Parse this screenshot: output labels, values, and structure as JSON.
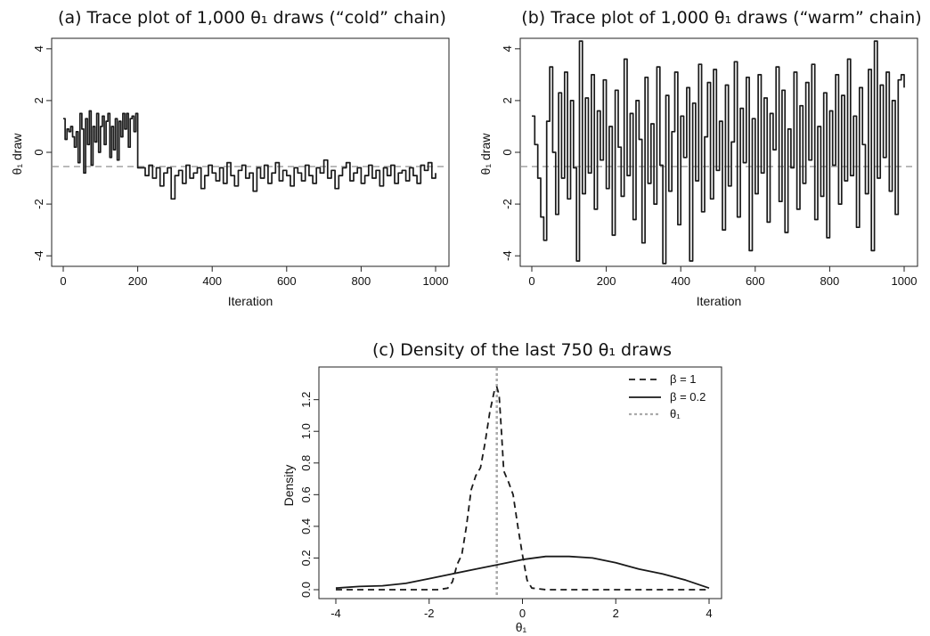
{
  "chart_data": [
    {
      "type": "line",
      "panel": "a",
      "title": "(a) Trace plot of 1,000 θ₁ draws (“cold” chain)",
      "xlabel": "Iteration",
      "ylabel": "θ₁ draw",
      "xlim": [
        0,
        1000
      ],
      "ylim": [
        -4.2,
        4.2
      ],
      "xticks": [
        "0",
        "200",
        "400",
        "600",
        "800",
        "1000"
      ],
      "yticks": [
        "-4",
        "-2",
        "0",
        "2",
        "4"
      ],
      "reference_line": {
        "y": -0.55,
        "color": "#aaaaaa",
        "style": "dashed"
      },
      "series": [
        {
          "line_color": "#1a1a1a",
          "x": [
            0,
            5,
            10,
            15,
            20,
            25,
            30,
            35,
            40,
            45,
            50,
            55,
            60,
            65,
            70,
            75,
            80,
            85,
            90,
            95,
            100,
            105,
            110,
            115,
            120,
            125,
            130,
            135,
            140,
            145,
            150,
            155,
            160,
            165,
            170,
            175,
            180,
            185,
            190,
            195,
            200,
            210,
            220,
            230,
            240,
            250,
            260,
            270,
            280,
            290,
            300,
            310,
            320,
            330,
            340,
            350,
            360,
            370,
            380,
            390,
            400,
            410,
            420,
            430,
            440,
            450,
            460,
            470,
            480,
            490,
            500,
            510,
            520,
            530,
            540,
            550,
            560,
            570,
            580,
            590,
            600,
            610,
            620,
            630,
            640,
            650,
            660,
            670,
            680,
            690,
            700,
            710,
            720,
            730,
            740,
            750,
            760,
            770,
            780,
            790,
            800,
            810,
            820,
            830,
            840,
            850,
            860,
            870,
            880,
            890,
            900,
            910,
            920,
            930,
            940,
            950,
            960,
            970,
            980,
            990,
            1000
          ],
          "values": [
            1.3,
            0.5,
            0.9,
            0.8,
            1.0,
            0.6,
            0.2,
            0.8,
            -0.4,
            1.5,
            0.9,
            -0.8,
            1.3,
            0.3,
            1.6,
            -0.5,
            1.0,
            0.4,
            1.5,
            0.0,
            1.0,
            1.4,
            0.3,
            1.2,
            1.5,
            -0.2,
            1.0,
            0.1,
            1.3,
            -0.3,
            1.2,
            0.6,
            1.5,
            0.9,
            1.5,
            0.2,
            1.3,
            1.4,
            0.8,
            1.5,
            -0.6,
            -0.6,
            -0.9,
            -0.5,
            -1.0,
            -0.6,
            -1.3,
            -0.8,
            -0.6,
            -1.8,
            -0.9,
            -0.7,
            -1.2,
            -0.5,
            -1.0,
            -0.8,
            -0.6,
            -1.4,
            -0.9,
            -0.5,
            -0.8,
            -1.1,
            -0.6,
            -1.2,
            -0.4,
            -0.9,
            -1.3,
            -0.7,
            -0.5,
            -1.0,
            -0.8,
            -1.5,
            -0.6,
            -1.0,
            -0.5,
            -1.2,
            -0.8,
            -0.4,
            -1.1,
            -0.7,
            -0.9,
            -1.3,
            -0.6,
            -0.8,
            -1.1,
            -0.5,
            -0.9,
            -1.2,
            -0.6,
            -0.8,
            -0.3,
            -1.0,
            -0.7,
            -1.4,
            -0.9,
            -0.6,
            -0.4,
            -1.1,
            -0.8,
            -0.6,
            -1.2,
            -0.9,
            -0.5,
            -1.0,
            -0.7,
            -1.3,
            -0.6,
            -0.9,
            -0.5,
            -1.2,
            -0.8,
            -0.7,
            -1.1,
            -0.6,
            -0.9,
            -1.2,
            -0.5,
            -0.7,
            -0.4,
            -1.0,
            -0.8
          ]
        }
      ]
    },
    {
      "type": "line",
      "panel": "b",
      "title": "(b) Trace plot of 1,000 θ₁ draws (“warm” chain)",
      "xlabel": "Iteration",
      "ylabel": "θ₁ draw",
      "xlim": [
        0,
        1000
      ],
      "ylim": [
        -4.2,
        4.2
      ],
      "xticks": [
        "0",
        "200",
        "400",
        "600",
        "800",
        "1000"
      ],
      "yticks": [
        "-4",
        "-2",
        "0",
        "2",
        "4"
      ],
      "reference_line": {
        "y": -0.55,
        "color": "#aaaaaa",
        "style": "dashed"
      },
      "series": [
        {
          "line_color": "#1a1a1a",
          "x": [
            0,
            8,
            16,
            24,
            32,
            40,
            48,
            56,
            64,
            72,
            80,
            88,
            96,
            104,
            112,
            120,
            128,
            136,
            144,
            152,
            160,
            168,
            176,
            184,
            192,
            200,
            208,
            216,
            224,
            232,
            240,
            248,
            256,
            264,
            272,
            280,
            288,
            296,
            304,
            312,
            320,
            328,
            336,
            344,
            352,
            360,
            368,
            376,
            384,
            392,
            400,
            408,
            416,
            424,
            432,
            440,
            448,
            456,
            464,
            472,
            480,
            488,
            496,
            504,
            512,
            520,
            528,
            536,
            544,
            552,
            560,
            568,
            576,
            584,
            592,
            600,
            608,
            616,
            624,
            632,
            640,
            648,
            656,
            664,
            672,
            680,
            688,
            696,
            704,
            712,
            720,
            728,
            736,
            744,
            752,
            760,
            768,
            776,
            784,
            792,
            800,
            808,
            816,
            824,
            832,
            840,
            848,
            856,
            864,
            872,
            880,
            888,
            896,
            904,
            912,
            920,
            928,
            936,
            944,
            952,
            960,
            968,
            976,
            984,
            992,
            1000
          ],
          "values": [
            1.4,
            0.3,
            -1.0,
            -2.5,
            -3.4,
            1.2,
            3.3,
            0.0,
            -2.4,
            2.3,
            -1.0,
            3.1,
            -1.8,
            2.0,
            -0.6,
            -4.2,
            4.3,
            -1.6,
            2.1,
            -0.8,
            3.0,
            -2.2,
            1.6,
            -0.3,
            2.8,
            -1.4,
            1.0,
            -3.2,
            2.4,
            0.2,
            -1.7,
            3.6,
            -0.9,
            1.5,
            -2.6,
            2.0,
            0.5,
            -3.5,
            2.9,
            -1.2,
            1.1,
            -2.0,
            3.3,
            -0.5,
            -4.3,
            2.2,
            -1.5,
            0.8,
            3.1,
            -2.8,
            1.4,
            -0.2,
            2.5,
            -4.2,
            1.9,
            -1.1,
            3.4,
            -2.3,
            0.6,
            2.7,
            -1.8,
            3.2,
            -0.7,
            1.2,
            -3.0,
            2.6,
            -1.3,
            0.4,
            3.5,
            -2.5,
            1.7,
            -0.4,
            2.9,
            -3.8,
            1.3,
            -1.6,
            3.0,
            -0.8,
            2.1,
            -2.7,
            1.5,
            0.1,
            3.3,
            -1.9,
            2.4,
            -3.1,
            0.9,
            -0.6,
            3.1,
            -2.2,
            1.8,
            -1.2,
            2.7,
            -0.3,
            3.4,
            -2.6,
            1.0,
            -1.7,
            2.3,
            -3.3,
            1.6,
            -0.5,
            3.0,
            -2.0,
            2.2,
            -1.1,
            3.6,
            -0.9,
            1.4,
            -2.9,
            2.5,
            0.3,
            -1.6,
            3.2,
            -3.8,
            4.3,
            -1.0,
            2.6,
            -0.2,
            3.1,
            -1.5,
            2.0,
            -2.4,
            2.8,
            3.0,
            2.5
          ]
        }
      ]
    },
    {
      "type": "line",
      "panel": "c",
      "title": "(c) Density of the last 750 θ₁ draws",
      "xlabel": "θ₁",
      "ylabel": "Density",
      "xlim": [
        -4,
        4
      ],
      "ylim": [
        0,
        1.35
      ],
      "xticks": [
        "-4",
        "-2",
        "0",
        "2",
        "4"
      ],
      "yticks": [
        "0.0",
        "0.2",
        "0.4",
        "0.6",
        "0.8",
        "1.0",
        "1.2"
      ],
      "reference_line": {
        "x": -0.55,
        "color": "#aaaaaa",
        "style": "dotted"
      },
      "legend_position": "top-right",
      "series": [
        {
          "name": "β = 1",
          "style": "dashed",
          "line_color": "#1a1a1a",
          "x": [
            -4.0,
            -3.0,
            -2.0,
            -1.8,
            -1.6,
            -1.5,
            -1.4,
            -1.3,
            -1.2,
            -1.1,
            -1.0,
            -0.9,
            -0.8,
            -0.7,
            -0.6,
            -0.55,
            -0.5,
            -0.45,
            -0.4,
            -0.3,
            -0.2,
            -0.1,
            0.0,
            0.1,
            0.2,
            0.5,
            1.0,
            2.0,
            3.0,
            4.0
          ],
          "values": [
            0.0,
            0.0,
            0.0,
            0.0,
            0.01,
            0.05,
            0.16,
            0.22,
            0.4,
            0.63,
            0.72,
            0.77,
            0.93,
            1.12,
            1.26,
            1.28,
            1.23,
            1.0,
            0.75,
            0.68,
            0.6,
            0.4,
            0.22,
            0.06,
            0.01,
            0.0,
            0.0,
            0.0,
            0.0,
            0.0
          ]
        },
        {
          "name": "β = 0.2",
          "style": "solid",
          "line_color": "#1a1a1a",
          "x": [
            -4.0,
            -3.5,
            -3.0,
            -2.5,
            -2.0,
            -1.5,
            -1.0,
            -0.5,
            0.0,
            0.5,
            1.0,
            1.5,
            2.0,
            2.5,
            3.0,
            3.5,
            4.0
          ],
          "values": [
            0.01,
            0.02,
            0.025,
            0.04,
            0.07,
            0.1,
            0.13,
            0.16,
            0.19,
            0.21,
            0.21,
            0.2,
            0.17,
            0.13,
            0.1,
            0.06,
            0.01
          ]
        },
        {
          "name": "θ₁",
          "style": "dotted",
          "line_color": "#aaaaaa",
          "x": [
            -0.55,
            -0.55
          ],
          "values": [
            0,
            1.35
          ]
        }
      ]
    }
  ]
}
